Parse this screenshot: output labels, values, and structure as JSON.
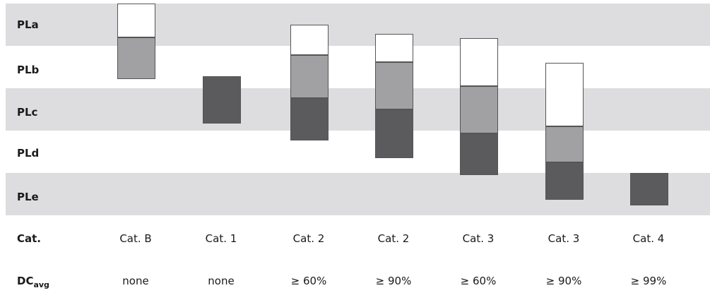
{
  "rows": [
    {
      "label": "PLa",
      "shaded": true
    },
    {
      "label": "PLb",
      "shaded": false
    },
    {
      "label": "PLc",
      "shaded": true
    },
    {
      "label": "PLd",
      "shaded": false
    },
    {
      "label": "PLe",
      "shaded": true
    }
  ],
  "cat_row": {
    "label": "Cat."
  },
  "dc_row": {
    "label_main": "DC",
    "label_sub": "avg"
  },
  "chart_data": {
    "type": "bar",
    "y_levels": [
      "PLa",
      "PLb",
      "PLc",
      "PLd",
      "PLe"
    ],
    "y_scale_note_positions": {
      "PLa": 0,
      "PLb": 1,
      "PLc": 2,
      "PLd": 3,
      "PLe": 4
    },
    "columns": [
      {
        "category": "Cat. B",
        "dc": "none",
        "segments": [
          {
            "shade": "light",
            "from": 0,
            "to": 0.8
          },
          {
            "shade": "mid",
            "from": 0.8,
            "to": 1.78
          }
        ]
      },
      {
        "category": "Cat. 1",
        "dc": "none",
        "segments": [
          {
            "shade": "dark",
            "from": 1.72,
            "to": 2.83
          }
        ]
      },
      {
        "category": "Cat. 2",
        "dc": "≥ 60%",
        "segments": [
          {
            "shade": "light",
            "from": 0.5,
            "to": 1.22
          },
          {
            "shade": "mid",
            "from": 1.22,
            "to": 2.23
          },
          {
            "shade": "dark",
            "from": 2.23,
            "to": 3.23
          }
        ]
      },
      {
        "category": "Cat. 2",
        "dc": "≥ 90%",
        "segments": [
          {
            "shade": "light",
            "from": 0.72,
            "to": 1.38
          },
          {
            "shade": "mid",
            "from": 1.38,
            "to": 2.5
          },
          {
            "shade": "dark",
            "from": 2.5,
            "to": 3.65
          }
        ]
      },
      {
        "category": "Cat. 3",
        "dc": "≥ 60%",
        "segments": [
          {
            "shade": "light",
            "from": 0.82,
            "to": 1.95
          },
          {
            "shade": "mid",
            "from": 1.95,
            "to": 3.07
          },
          {
            "shade": "dark",
            "from": 3.07,
            "to": 4.05
          }
        ]
      },
      {
        "category": "Cat. 3",
        "dc": "≥ 90%",
        "segments": [
          {
            "shade": "light",
            "from": 1.4,
            "to": 2.9
          },
          {
            "shade": "mid",
            "from": 2.9,
            "to": 3.75
          },
          {
            "shade": "dark",
            "from": 3.75,
            "to": 4.63
          }
        ]
      },
      {
        "category": "Cat. 4",
        "dc": "≥ 99%",
        "segments": [
          {
            "shade": "dark",
            "from": 4.0,
            "to": 4.77
          }
        ]
      }
    ]
  }
}
